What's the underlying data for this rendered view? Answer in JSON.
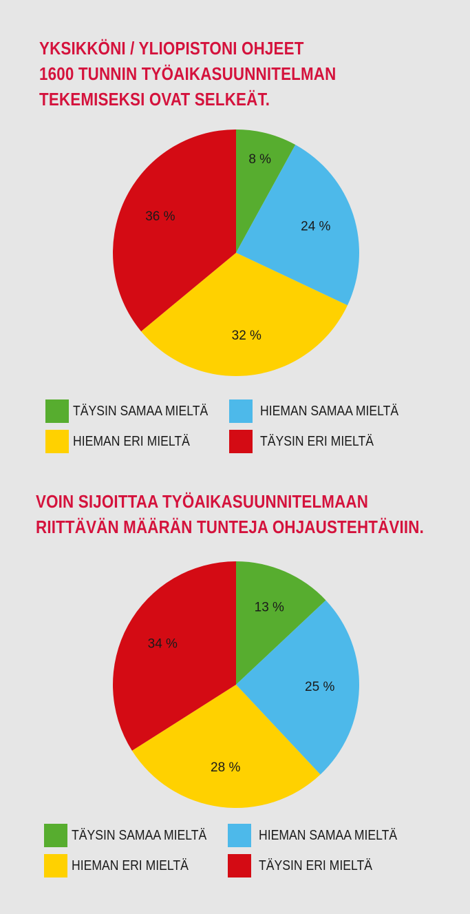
{
  "chart_data": [
    {
      "type": "pie",
      "title": [
        "YKSIKKÖNI / YLIOPISTONI OHJEET",
        "1600 TUNNIN TYÖAIKASUUNNITELMAN",
        "TEKEMISEKSI OVAT SELKEÄT."
      ],
      "categories": [
        "TÄYSIN SAMAA MIELTÄ",
        "HIEMAN SAMAA MIELTÄ",
        "HIEMAN ERI  MIELTÄ",
        "TÄYSIN ERI  MIELTÄ"
      ],
      "values": [
        8,
        24,
        32,
        36
      ],
      "data_labels": [
        "8 %",
        "24 %",
        "32 %",
        "36 %"
      ],
      "colors": [
        "#57ad2f",
        "#4db9ea",
        "#ffd100",
        "#d40b14"
      ],
      "legend_position": "bottom"
    },
    {
      "type": "pie",
      "title": [
        "VOIN SIJOITTAA TYÖAIKASUUNNITELMAAN",
        "RIITTÄVÄN MÄÄRÄN TUNTEJA OHJAUSTEHTÄVIIN."
      ],
      "categories": [
        "TÄYSIN SAMAA MIELTÄ",
        "HIEMAN SAMAA MIELTÄ",
        "HIEMAN ERI  MIELTÄ",
        "TÄYSIN ERI  MIELTÄ"
      ],
      "values": [
        13,
        25,
        28,
        34
      ],
      "data_labels": [
        "13 %",
        "25 %",
        "28 %",
        "34 %"
      ],
      "colors": [
        "#57ad2f",
        "#4db9ea",
        "#ffd100",
        "#d40b14"
      ],
      "legend_position": "bottom"
    }
  ],
  "background_color": "#e6e6e6",
  "title_color": "#d4123c"
}
